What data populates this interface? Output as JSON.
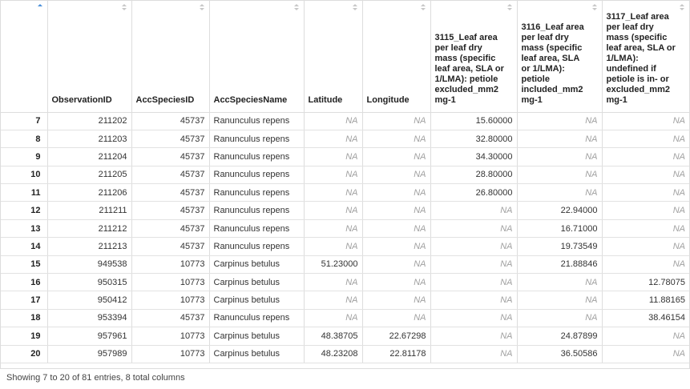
{
  "columns": [
    {
      "label": "",
      "sort": "asc"
    },
    {
      "label": "ObservationID",
      "sort": "none"
    },
    {
      "label": "AccSpeciesID",
      "sort": "none"
    },
    {
      "label": "AccSpeciesName",
      "sort": "none"
    },
    {
      "label": "Latitude",
      "sort": "none"
    },
    {
      "label": "Longitude",
      "sort": "none"
    },
    {
      "label": "3115_Leaf area per leaf dry mass (specific leaf area, SLA or 1/LMA): petiole excluded_mm2 mg-1",
      "sort": "none"
    },
    {
      "label": "3116_Leaf area per leaf dry mass (specific leaf area, SLA or 1/LMA): petiole included_mm2 mg-1",
      "sort": "none"
    },
    {
      "label": "3117_Leaf area per leaf dry mass (specific leaf area, SLA or 1/LMA): undefined if petiole is in- or excluded_mm2 mg-1",
      "sort": "none"
    }
  ],
  "rows": [
    [
      "7",
      "211202",
      "45737",
      "Ranunculus repens",
      "NA",
      "NA",
      "15.60000",
      "NA",
      "NA"
    ],
    [
      "8",
      "211203",
      "45737",
      "Ranunculus repens",
      "NA",
      "NA",
      "32.80000",
      "NA",
      "NA"
    ],
    [
      "9",
      "211204",
      "45737",
      "Ranunculus repens",
      "NA",
      "NA",
      "34.30000",
      "NA",
      "NA"
    ],
    [
      "10",
      "211205",
      "45737",
      "Ranunculus repens",
      "NA",
      "NA",
      "28.80000",
      "NA",
      "NA"
    ],
    [
      "11",
      "211206",
      "45737",
      "Ranunculus repens",
      "NA",
      "NA",
      "26.80000",
      "NA",
      "NA"
    ],
    [
      "12",
      "211211",
      "45737",
      "Ranunculus repens",
      "NA",
      "NA",
      "NA",
      "22.94000",
      "NA"
    ],
    [
      "13",
      "211212",
      "45737",
      "Ranunculus repens",
      "NA",
      "NA",
      "NA",
      "16.71000",
      "NA"
    ],
    [
      "14",
      "211213",
      "45737",
      "Ranunculus repens",
      "NA",
      "NA",
      "NA",
      "19.73549",
      "NA"
    ],
    [
      "15",
      "949538",
      "10773",
      "Carpinus betulus",
      "51.23000",
      "NA",
      "NA",
      "21.88846",
      "NA"
    ],
    [
      "16",
      "950315",
      "10773",
      "Carpinus betulus",
      "NA",
      "NA",
      "NA",
      "NA",
      "12.78075"
    ],
    [
      "17",
      "950412",
      "10773",
      "Carpinus betulus",
      "NA",
      "NA",
      "NA",
      "NA",
      "11.88165"
    ],
    [
      "18",
      "953394",
      "45737",
      "Ranunculus repens",
      "NA",
      "NA",
      "NA",
      "NA",
      "38.46154"
    ],
    [
      "19",
      "957961",
      "10773",
      "Carpinus betulus",
      "48.38705",
      "22.67298",
      "NA",
      "24.87899",
      "NA"
    ],
    [
      "20",
      "957989",
      "10773",
      "Carpinus betulus",
      "48.23208",
      "22.81178",
      "NA",
      "36.50586",
      "NA"
    ]
  ],
  "footer": "Showing 7 to 20 of 81 entries, 8 total columns",
  "colors": {
    "sort_active": "#4a90d9",
    "sort_inactive": "#c8c8c8",
    "na_text": "#a0a0a0"
  }
}
